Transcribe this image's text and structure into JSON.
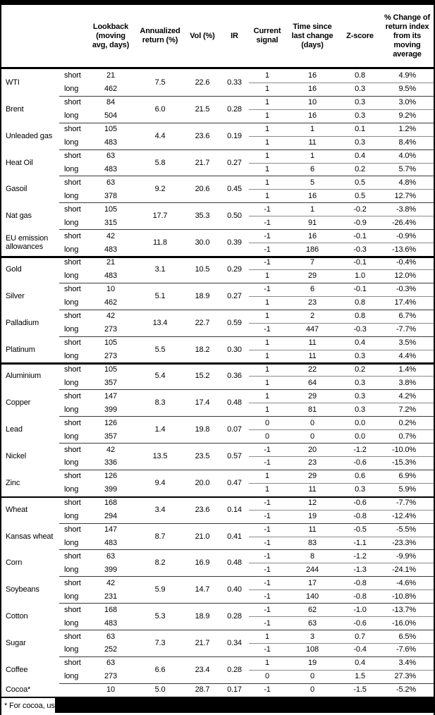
{
  "colors": {
    "background": "#ffffff",
    "text": "#000000",
    "outer_border": "#000000",
    "section_line": "#000000",
    "row_separator": "#3a3a3a",
    "pair_divider": "#8a8a8a",
    "redaction_bar": "#000000"
  },
  "table": {
    "columns": {
      "lookback": "Lookback\n(moving\navg, days)",
      "annualized": "Annualized\nreturn (%)",
      "vol": "Vol (%)",
      "ir": "IR",
      "signal": "Current\nsignal",
      "time": "Time since\nlast change\n(days)",
      "zscore": "Z-score",
      "pct_change": "% Change of\nreturn index\nfrom its\nmoving\naverage"
    },
    "footnote": "* For cocoa, uses",
    "groups": [
      {
        "name": "WTI",
        "annualized": "7.5",
        "vol": "22.6",
        "ir": "0.33",
        "rows": [
          {
            "label": "short",
            "lookback": "21",
            "signal": "1",
            "time": "16",
            "zscore": "0.8",
            "pct": "4.9%"
          },
          {
            "label": "long",
            "lookback": "462",
            "signal": "1",
            "time": "16",
            "zscore": "0.3",
            "pct": "9.5%"
          }
        ]
      },
      {
        "name": "Brent",
        "annualized": "6.0",
        "vol": "21.5",
        "ir": "0.28",
        "rows": [
          {
            "label": "short",
            "lookback": "84",
            "signal": "1",
            "time": "10",
            "zscore": "0.3",
            "pct": "3.0%"
          },
          {
            "label": "long",
            "lookback": "504",
            "signal": "1",
            "time": "16",
            "zscore": "0.3",
            "pct": "9.2%"
          }
        ]
      },
      {
        "name": "Unleaded gas",
        "annualized": "4.4",
        "vol": "23.6",
        "ir": "0.19",
        "rows": [
          {
            "label": "short",
            "lookback": "105",
            "signal": "1",
            "time": "1",
            "zscore": "0.1",
            "pct": "1.2%"
          },
          {
            "label": "long",
            "lookback": "483",
            "signal": "1",
            "time": "11",
            "zscore": "0.3",
            "pct": "8.4%"
          }
        ]
      },
      {
        "name": "Heat Oil",
        "annualized": "5.8",
        "vol": "21.7",
        "ir": "0.27",
        "rows": [
          {
            "label": "short",
            "lookback": "63",
            "signal": "1",
            "time": "1",
            "zscore": "0.4",
            "pct": "4.0%"
          },
          {
            "label": "long",
            "lookback": "483",
            "signal": "1",
            "time": "6",
            "zscore": "0.2",
            "pct": "5.7%"
          }
        ]
      },
      {
        "name": "Gasoil",
        "annualized": "9.2",
        "vol": "20.6",
        "ir": "0.45",
        "rows": [
          {
            "label": "short",
            "lookback": "63",
            "signal": "1",
            "time": "5",
            "zscore": "0.5",
            "pct": "4.8%"
          },
          {
            "label": "long",
            "lookback": "378",
            "signal": "1",
            "time": "16",
            "zscore": "0.5",
            "pct": "12.7%"
          }
        ]
      },
      {
        "name": "Nat gas",
        "annualized": "17.7",
        "vol": "35.3",
        "ir": "0.50",
        "rows": [
          {
            "label": "short",
            "lookback": "105",
            "signal": "-1",
            "time": "1",
            "zscore": "-0.2",
            "pct": "-3.8%"
          },
          {
            "label": "long",
            "lookback": "315",
            "signal": "-1",
            "time": "91",
            "zscore": "-0.9",
            "pct": "-26.4%"
          }
        ]
      },
      {
        "name": "EU emission allowances",
        "annualized": "11.8",
        "vol": "30.0",
        "ir": "0.39",
        "rows": [
          {
            "label": "short",
            "lookback": "42",
            "signal": "-1",
            "time": "16",
            "zscore": "-0.1",
            "pct": "-0.9%"
          },
          {
            "label": "long",
            "lookback": "483",
            "signal": "-1",
            "time": "186",
            "zscore": "-0.3",
            "pct": "-13.6%"
          }
        ]
      },
      {
        "name": "Gold",
        "section_start": true,
        "annualized": "3.1",
        "vol": "10.5",
        "ir": "0.29",
        "rows": [
          {
            "label": "short",
            "lookback": "21",
            "signal": "-1",
            "time": "7",
            "zscore": "-0.1",
            "pct": "-0.4%"
          },
          {
            "label": "long",
            "lookback": "483",
            "signal": "1",
            "time": "29",
            "zscore": "1.0",
            "pct": "12.0%"
          }
        ]
      },
      {
        "name": "Silver",
        "annualized": "5.1",
        "vol": "18.9",
        "ir": "0.27",
        "rows": [
          {
            "label": "short",
            "lookback": "10",
            "signal": "-1",
            "time": "6",
            "zscore": "-0.1",
            "pct": "-0.3%"
          },
          {
            "label": "long",
            "lookback": "462",
            "signal": "1",
            "time": "23",
            "zscore": "0.8",
            "pct": "17.4%"
          }
        ]
      },
      {
        "name": "Palladium",
        "annualized": "13.4",
        "vol": "22.7",
        "ir": "0.59",
        "rows": [
          {
            "label": "short",
            "lookback": "42",
            "signal": "1",
            "time": "2",
            "zscore": "0.8",
            "pct": "6.7%"
          },
          {
            "label": "long",
            "lookback": "273",
            "signal": "-1",
            "time": "447",
            "zscore": "-0.3",
            "pct": "-7.7%"
          }
        ]
      },
      {
        "name": "Platinum",
        "annualized": "5.5",
        "vol": "18.2",
        "ir": "0.30",
        "rows": [
          {
            "label": "short",
            "lookback": "105",
            "signal": "1",
            "time": "11",
            "zscore": "0.4",
            "pct": "3.5%"
          },
          {
            "label": "long",
            "lookback": "273",
            "signal": "1",
            "time": "11",
            "zscore": "0.3",
            "pct": "4.4%"
          }
        ]
      },
      {
        "name": "Aluminium",
        "section_start": true,
        "annualized": "5.4",
        "vol": "15.2",
        "ir": "0.36",
        "rows": [
          {
            "label": "short",
            "lookback": "105",
            "signal": "1",
            "time": "22",
            "zscore": "0.2",
            "pct": "1.4%"
          },
          {
            "label": "long",
            "lookback": "357",
            "signal": "1",
            "time": "64",
            "zscore": "0.3",
            "pct": "3.8%"
          }
        ]
      },
      {
        "name": "Copper",
        "annualized": "8.3",
        "vol": "17.4",
        "ir": "0.48",
        "rows": [
          {
            "label": "short",
            "lookback": "147",
            "signal": "1",
            "time": "29",
            "zscore": "0.3",
            "pct": "4.2%"
          },
          {
            "label": "long",
            "lookback": "399",
            "signal": "1",
            "time": "81",
            "zscore": "0.3",
            "pct": "7.2%"
          }
        ]
      },
      {
        "name": "Lead",
        "annualized": "1.4",
        "vol": "19.8",
        "ir": "0.07",
        "rows": [
          {
            "label": "short",
            "lookback": "126",
            "signal": "0",
            "time": "0",
            "zscore": "0.0",
            "pct": "0.2%"
          },
          {
            "label": "long",
            "lookback": "357",
            "signal": "0",
            "time": "0",
            "zscore": "0.0",
            "pct": "0.7%"
          }
        ]
      },
      {
        "name": "Nickel",
        "annualized": "13.5",
        "vol": "23.5",
        "ir": "0.57",
        "rows": [
          {
            "label": "short",
            "lookback": "42",
            "signal": "-1",
            "time": "20",
            "zscore": "-1.2",
            "pct": "-10.0%"
          },
          {
            "label": "long",
            "lookback": "336",
            "signal": "-1",
            "time": "23",
            "zscore": "-0.6",
            "pct": "-15.3%"
          }
        ]
      },
      {
        "name": "Zinc",
        "annualized": "9.4",
        "vol": "20.0",
        "ir": "0.47",
        "rows": [
          {
            "label": "short",
            "lookback": "126",
            "signal": "1",
            "time": "29",
            "zscore": "0.6",
            "pct": "6.9%"
          },
          {
            "label": "long",
            "lookback": "399",
            "signal": "1",
            "time": "11",
            "zscore": "0.3",
            "pct": "5.9%"
          }
        ]
      },
      {
        "name": "Wheat",
        "section_start": true,
        "annualized": "3.4",
        "vol": "23.6",
        "ir": "0.14",
        "rows": [
          {
            "label": "short",
            "lookback": "168",
            "signal": "-1",
            "time": "12",
            "zscore": "-0.6",
            "pct": "-7.7%"
          },
          {
            "label": "long",
            "lookback": "294",
            "signal": "-1",
            "time": "19",
            "zscore": "-0.8",
            "pct": "-12.4%"
          }
        ]
      },
      {
        "name": "Kansas wheat",
        "annualized": "8.7",
        "vol": "21.0",
        "ir": "0.41",
        "rows": [
          {
            "label": "short",
            "lookback": "147",
            "signal": "-1",
            "time": "11",
            "zscore": "-0.5",
            "pct": "-5.5%"
          },
          {
            "label": "long",
            "lookback": "483",
            "signal": "-1",
            "time": "83",
            "zscore": "-1.1",
            "pct": "-23.3%"
          }
        ]
      },
      {
        "name": "Corn",
        "annualized": "8.2",
        "vol": "16.9",
        "ir": "0.48",
        "rows": [
          {
            "label": "short",
            "lookback": "63",
            "signal": "-1",
            "time": "8",
            "zscore": "-1.2",
            "pct": "-9.9%"
          },
          {
            "label": "long",
            "lookback": "399",
            "signal": "-1",
            "time": "244",
            "zscore": "-1.3",
            "pct": "-24.1%"
          }
        ]
      },
      {
        "name": "Soybeans",
        "annualized": "5.9",
        "vol": "14.7",
        "ir": "0.40",
        "rows": [
          {
            "label": "short",
            "lookback": "42",
            "signal": "-1",
            "time": "17",
            "zscore": "-0.8",
            "pct": "-4.6%"
          },
          {
            "label": "long",
            "lookback": "231",
            "signal": "-1",
            "time": "140",
            "zscore": "-0.8",
            "pct": "-10.8%"
          }
        ]
      },
      {
        "name": "Cotton",
        "annualized": "5.3",
        "vol": "18.9",
        "ir": "0.28",
        "rows": [
          {
            "label": "short",
            "lookback": "168",
            "signal": "-1",
            "time": "62",
            "zscore": "-1.0",
            "pct": "-13.7%"
          },
          {
            "label": "long",
            "lookback": "483",
            "signal": "-1",
            "time": "63",
            "zscore": "-0.6",
            "pct": "-16.0%"
          }
        ]
      },
      {
        "name": "Sugar",
        "annualized": "7.3",
        "vol": "21.7",
        "ir": "0.34",
        "rows": [
          {
            "label": "short",
            "lookback": "63",
            "signal": "1",
            "time": "3",
            "zscore": "0.7",
            "pct": "6.5%"
          },
          {
            "label": "long",
            "lookback": "252",
            "signal": "-1",
            "time": "108",
            "zscore": "-0.4",
            "pct": "-7.6%"
          }
        ]
      },
      {
        "name": "Coffee",
        "annualized": "6.6",
        "vol": "23.4",
        "ir": "0.28",
        "rows": [
          {
            "label": "short",
            "lookback": "63",
            "signal": "1",
            "time": "19",
            "zscore": "0.4",
            "pct": "3.4%"
          },
          {
            "label": "long",
            "lookback": "273",
            "signal": "0",
            "time": "0",
            "zscore": "1.5",
            "pct": "27.3%"
          }
        ]
      },
      {
        "name": "Cocoa*",
        "single": true,
        "annualized": "5.0",
        "vol": "28.7",
        "ir": "0.17",
        "rows": [
          {
            "label": "",
            "lookback": "10",
            "signal": "-1",
            "time": "0",
            "zscore": "-1.5",
            "pct": "-5.2%"
          }
        ]
      }
    ]
  }
}
